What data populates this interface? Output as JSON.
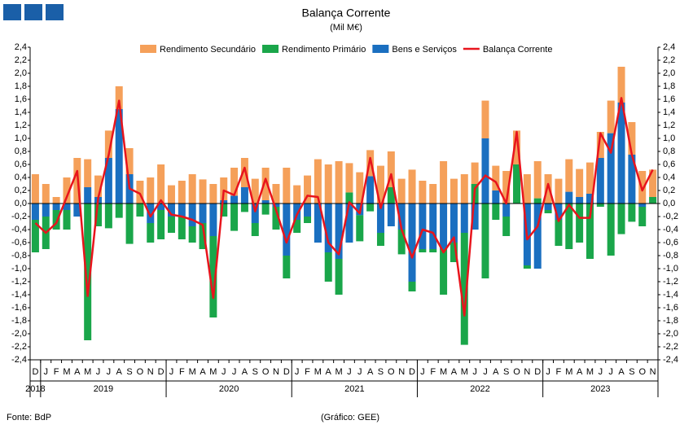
{
  "chart_data": {
    "type": "bar",
    "stacked": true,
    "title": "Balança Corrente",
    "subtitle": "(Mil M€)",
    "source": "Fonte: BdP",
    "credit": "(Gráfico: GEE)",
    "categories": [
      "D",
      "J",
      "F",
      "M",
      "A",
      "M",
      "J",
      "J",
      "A",
      "S",
      "O",
      "N",
      "D",
      "J",
      "F",
      "M",
      "A",
      "M",
      "J",
      "J",
      "A",
      "S",
      "O",
      "N",
      "D",
      "J",
      "F",
      "M",
      "A",
      "M",
      "J",
      "J",
      "A",
      "S",
      "O",
      "N",
      "D",
      "J",
      "F",
      "M",
      "A",
      "M",
      "J",
      "J",
      "A",
      "S",
      "O",
      "N",
      "D",
      "J",
      "F",
      "M",
      "A",
      "M",
      "J",
      "J",
      "A",
      "S",
      "O",
      "N"
    ],
    "years": [
      "2018",
      "2019",
      "2020",
      "2021",
      "2022",
      "2023"
    ],
    "series": [
      {
        "name": "Rendimento Secundário",
        "color": "#f5a05a",
        "values": [
          0.45,
          0.3,
          0.1,
          0.4,
          0.7,
          0.43,
          0.33,
          0.42,
          0.35,
          0.4,
          0.35,
          0.4,
          0.6,
          0.28,
          0.35,
          0.45,
          0.37,
          0.3,
          0.35,
          0.43,
          0.45,
          0.38,
          0.5,
          0.3,
          0.55,
          0.28,
          0.43,
          0.68,
          0.6,
          0.65,
          0.45,
          0.48,
          0.4,
          0.58,
          0.55,
          0.38,
          0.52,
          0.35,
          0.3,
          0.65,
          0.38,
          0.45,
          0.33,
          0.58,
          0.38,
          0.5,
          0.52,
          0.45,
          0.57,
          0.45,
          0.38,
          0.5,
          0.43,
          0.48,
          0.4,
          0.5,
          0.55,
          0.5,
          0.5,
          0.42
        ]
      },
      {
        "name": "Rendimento Primário",
        "color": "#1aa64a",
        "values": [
          -0.5,
          -0.5,
          -0.3,
          -0.3,
          0,
          -2.1,
          -0.35,
          -0.38,
          -0.22,
          -0.62,
          -0.2,
          -0.3,
          -0.45,
          -0.25,
          -0.35,
          -0.25,
          -0.4,
          -1.25,
          -0.2,
          -0.42,
          -0.13,
          -0.2,
          -0.17,
          -0.35,
          -0.35,
          -0.2,
          -0.1,
          0,
          -0.45,
          -0.55,
          0.17,
          -0.4,
          -0.12,
          -0.2,
          0.25,
          -0.38,
          -0.15,
          -0.05,
          -0.05,
          -0.7,
          -0.3,
          -1.72,
          0.3,
          -1.15,
          -0.25,
          -0.3,
          0.6,
          -0.05,
          0.08,
          -0.05,
          -0.4,
          -0.7,
          -0.6,
          -0.85,
          -0.05,
          -0.8,
          -0.47,
          -0.28,
          -0.3,
          0.1
        ]
      },
      {
        "name": "Bens e Serviços",
        "color": "#1a6fc0",
        "values": [
          -0.25,
          -0.2,
          -0.1,
          -0.1,
          -0.2,
          0.25,
          0.1,
          0.7,
          1.45,
          0.45,
          0,
          -0.3,
          -0.1,
          -0.2,
          -0.2,
          -0.35,
          -0.3,
          -0.5,
          0.05,
          0.12,
          0.25,
          -0.3,
          0.05,
          -0.05,
          -0.8,
          -0.25,
          -0.2,
          -0.6,
          -0.75,
          -0.85,
          -0.6,
          -0.18,
          0.42,
          -0.45,
          -0.35,
          -0.4,
          -1.2,
          -0.7,
          -0.7,
          -0.7,
          -0.6,
          -0.45,
          -0.4,
          1.0,
          0.2,
          -0.2,
          0,
          -0.95,
          -1.0,
          -0.1,
          -0.25,
          0.18,
          0.1,
          0.15,
          0.7,
          1.08,
          1.55,
          0.75,
          -0.05,
          0
        ]
      },
      {
        "name": "Balança Corrente",
        "color": "#e8141c",
        "type": "line",
        "values": [
          -0.3,
          -0.45,
          -0.3,
          0.1,
          0.5,
          -1.42,
          0.08,
          0.74,
          1.58,
          0.23,
          0.15,
          -0.2,
          0.05,
          -0.17,
          -0.2,
          -0.25,
          -0.33,
          -1.45,
          0.2,
          0.13,
          0.55,
          -0.12,
          0.38,
          -0.1,
          -0.6,
          -0.17,
          0.12,
          0.1,
          -0.6,
          -0.78,
          0.02,
          -0.15,
          0.7,
          -0.07,
          0.45,
          -0.4,
          -0.83,
          -0.4,
          -0.45,
          -0.75,
          -0.52,
          -1.72,
          0.23,
          0.43,
          0.33,
          0,
          1.1,
          -0.55,
          -0.35,
          0.3,
          -0.27,
          -0.02,
          -0.22,
          -0.22,
          1.08,
          0.78,
          1.62,
          0.75,
          0.2,
          0.52
        ]
      }
    ],
    "ylim": [
      -2.4,
      2.4
    ],
    "yticks": [
      {
        "value": -2.4,
        "label": "-2,4"
      },
      {
        "value": -2.2,
        "label": "-2,2"
      },
      {
        "value": -2,
        "label": "-2,0"
      },
      {
        "value": -1.8,
        "label": "-1,8"
      },
      {
        "value": -1.6,
        "label": "-1,6"
      },
      {
        "value": -1.4,
        "label": "-1,4"
      },
      {
        "value": -1.2,
        "label": "-1,2"
      },
      {
        "value": -1,
        "label": "-1,0"
      },
      {
        "value": -0.8,
        "label": "-0,8"
      },
      {
        "value": -0.6,
        "label": "-0,6"
      },
      {
        "value": -0.4,
        "label": "-0,4"
      },
      {
        "value": -0.2,
        "label": "-0,2"
      },
      {
        "value": 0,
        "label": "0,0"
      },
      {
        "value": 0.2,
        "label": "0,2"
      },
      {
        "value": 0.4,
        "label": "0,4"
      },
      {
        "value": 0.6,
        "label": "0,6"
      },
      {
        "value": 0.8,
        "label": "0,8"
      },
      {
        "value": 1,
        "label": "1,0"
      },
      {
        "value": 1.2,
        "label": "1,2"
      },
      {
        "value": 1.4,
        "label": "1,4"
      },
      {
        "value": 1.6,
        "label": "1,6"
      },
      {
        "value": 1.8,
        "label": "1,8"
      },
      {
        "value": 2,
        "label": "2,0"
      },
      {
        "value": 2.2,
        "label": "2,2"
      },
      {
        "value": 2.4,
        "label": "2,4"
      }
    ],
    "legend": "top"
  }
}
